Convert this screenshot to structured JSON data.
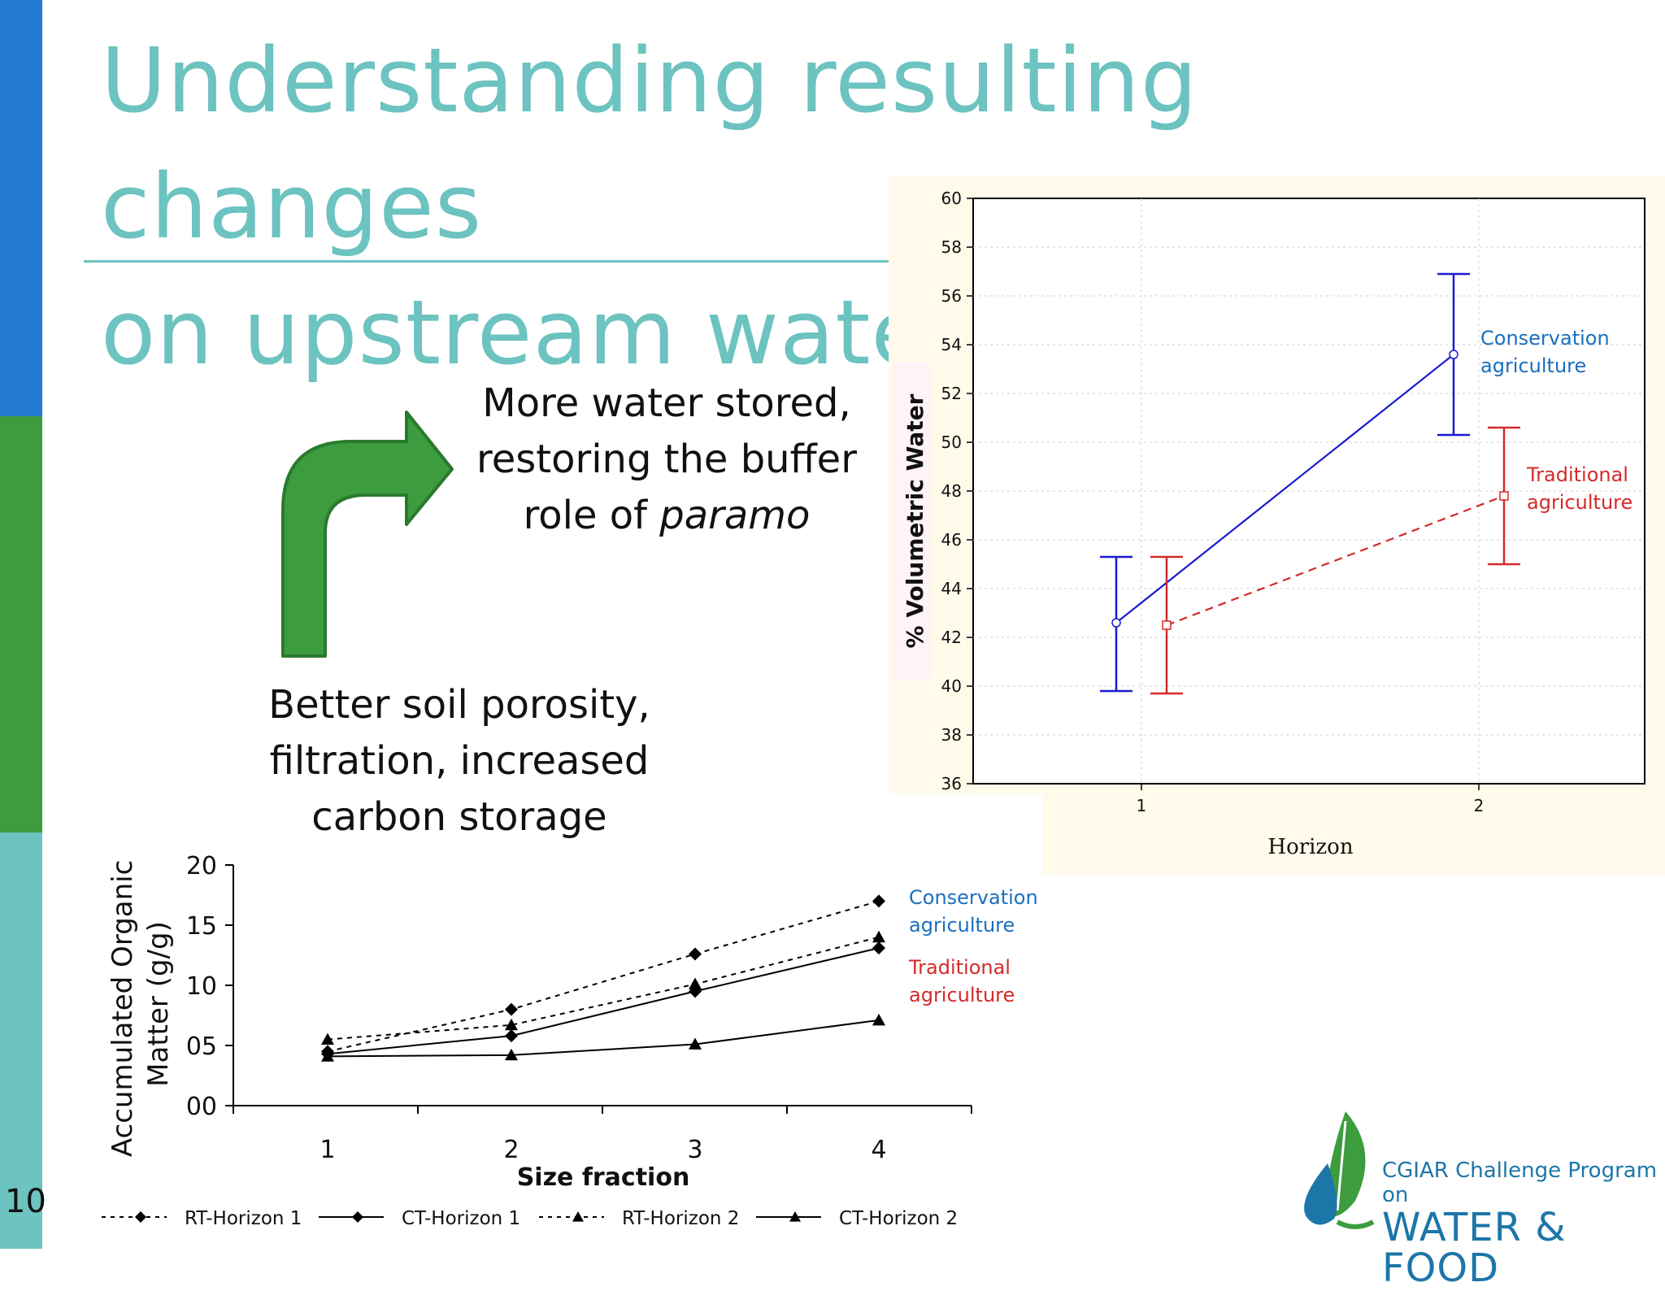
{
  "slide": {
    "title_line1": "Understanding resulting changes",
    "title_line2": "on upstream water",
    "slide_number": "10",
    "colors": {
      "title": "#6cc3c0",
      "bar_blue": "#2479d1",
      "bar_green": "#3c9c3e",
      "bar_teal": "#6cc3c0",
      "arrow": "#3c9c3e"
    }
  },
  "notes": {
    "upper_line1": "More water stored,",
    "upper_line2": "restoring the buffer",
    "upper_line3_prefix": "role of ",
    "upper_line3_italic": "paramo",
    "lower_line1": "Better soil porosity,",
    "lower_line2": "filtration, increased",
    "lower_line3": "carbon storage"
  },
  "icons": {
    "arrow": "curved-arrow-up-right-icon",
    "logo": "leaf-water-drop-logo-icon"
  },
  "logo": {
    "line1": "CGIAR Challenge Program on",
    "line2": "WATER & FOOD"
  },
  "chart_data": [
    {
      "type": "line",
      "id": "volumetric-water",
      "ylabel": "% Volumetric Water",
      "xlabel": "Horizon",
      "ylim": [
        36,
        60
      ],
      "yticks": [
        "36",
        "38",
        "40",
        "42",
        "44",
        "46",
        "48",
        "50",
        "52",
        "54",
        "56",
        "58",
        "60"
      ],
      "xticks": [
        "1",
        "2"
      ],
      "grid": true,
      "series": [
        {
          "name": "Conservation agriculture",
          "color": "#1a1ad0",
          "dashed": false,
          "x": [
            1,
            2
          ],
          "y": [
            42.6,
            53.6
          ],
          "err_low": [
            39.8,
            50.3
          ],
          "err_high": [
            45.3,
            56.9
          ]
        },
        {
          "name": "Traditional agriculture",
          "color": "#d42a2a",
          "dashed": true,
          "x": [
            1,
            2
          ],
          "y": [
            42.5,
            47.8
          ],
          "err_low": [
            39.7,
            45.0
          ],
          "err_high": [
            45.3,
            50.6
          ]
        }
      ],
      "annotations": [
        {
          "line1": "Conservation",
          "line2": "agriculture",
          "color": "#1a6fbf"
        },
        {
          "line1": "Traditional",
          "line2": "agriculture",
          "color": "#d42a2a"
        }
      ]
    },
    {
      "type": "line",
      "id": "organic-matter",
      "ylabel_line1": "Accumulated Organic",
      "ylabel_line2": "Matter (g/g)",
      "xlabel": "Size fraction",
      "ylim": [
        0,
        20
      ],
      "yticks": [
        "00",
        "05",
        "10",
        "15",
        "20"
      ],
      "categories": [
        "1",
        "2",
        "3",
        "4"
      ],
      "grid": false,
      "legend_position": "bottom",
      "series": [
        {
          "name": "RT-Horizon 1",
          "marker": "diamond",
          "dashed": true,
          "values": [
            4.5,
            8.0,
            12.6,
            17.0
          ]
        },
        {
          "name": "CT-Horizon 1",
          "marker": "diamond",
          "dashed": false,
          "values": [
            4.3,
            5.8,
            9.5,
            13.1
          ]
        },
        {
          "name": "RT-Horizon 2",
          "marker": "triangle",
          "dashed": true,
          "values": [
            5.5,
            6.7,
            10.1,
            14.0
          ]
        },
        {
          "name": "CT-Horizon 2",
          "marker": "triangle",
          "dashed": false,
          "values": [
            4.1,
            4.2,
            5.1,
            7.1
          ]
        }
      ],
      "annotations": [
        {
          "line1": "Conservation",
          "line2": "agriculture",
          "color": "#1a6fbf"
        },
        {
          "line1": "Traditional",
          "line2": "agriculture",
          "color": "#d42a2a"
        }
      ]
    }
  ]
}
